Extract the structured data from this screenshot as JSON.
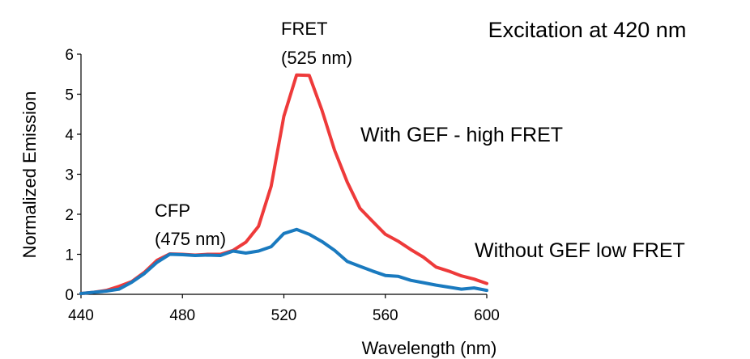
{
  "chart_data": {
    "type": "line",
    "title": "Excitation at 420 nm",
    "xlabel": "Wavelength (nm)",
    "ylabel": "Normalized Emission",
    "xlim": [
      440,
      600
    ],
    "ylim": [
      0,
      6
    ],
    "xticks": [
      440,
      480,
      520,
      560,
      600
    ],
    "yticks": [
      0,
      1,
      2,
      3,
      4,
      5,
      6
    ],
    "grid": false,
    "series": [
      {
        "name": "With GEF - high FRET",
        "color": "#ee3a3a",
        "x": [
          440,
          445,
          450,
          455,
          460,
          465,
          470,
          475,
          480,
          485,
          490,
          495,
          500,
          505,
          510,
          515,
          520,
          525,
          530,
          535,
          540,
          545,
          550,
          555,
          560,
          565,
          570,
          575,
          580,
          585,
          590,
          595,
          600
        ],
        "y": [
          0.02,
          0.05,
          0.1,
          0.2,
          0.32,
          0.55,
          0.85,
          1.01,
          1.0,
          0.98,
          1.0,
          1.0,
          1.1,
          1.3,
          1.7,
          2.7,
          4.45,
          5.48,
          5.47,
          4.6,
          3.6,
          2.8,
          2.15,
          1.82,
          1.5,
          1.33,
          1.12,
          0.93,
          0.68,
          0.58,
          0.46,
          0.38,
          0.27
        ]
      },
      {
        "name": "Without GEF low FRET",
        "color": "#1a7abf",
        "x": [
          440,
          445,
          450,
          455,
          460,
          465,
          470,
          475,
          480,
          485,
          490,
          495,
          500,
          505,
          510,
          515,
          520,
          525,
          530,
          535,
          540,
          545,
          550,
          555,
          560,
          565,
          570,
          575,
          580,
          585,
          590,
          595,
          600
        ],
        "y": [
          0.02,
          0.05,
          0.08,
          0.13,
          0.3,
          0.52,
          0.8,
          1.0,
          0.99,
          0.97,
          0.98,
          0.97,
          1.08,
          1.03,
          1.08,
          1.19,
          1.52,
          1.62,
          1.5,
          1.32,
          1.1,
          0.82,
          0.7,
          0.58,
          0.47,
          0.45,
          0.35,
          0.29,
          0.23,
          0.18,
          0.13,
          0.16,
          0.1
        ]
      }
    ],
    "annotations": [
      {
        "id": "fret",
        "lines": [
          "FRET",
          "(525 nm)"
        ]
      },
      {
        "id": "cfp",
        "lines": [
          "CFP",
          "(475 nm)"
        ]
      }
    ]
  }
}
